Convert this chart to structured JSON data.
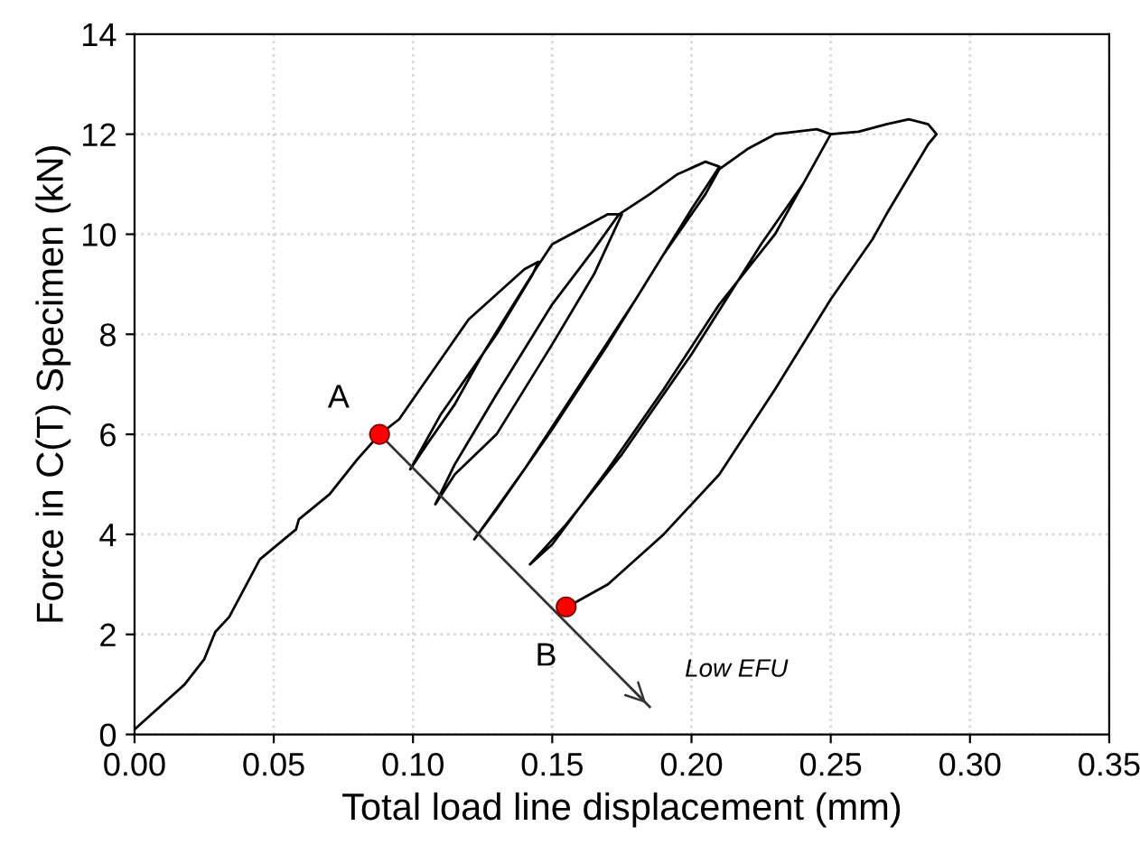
{
  "chart_data": {
    "type": "line",
    "xlabel": "Total load line displacement (mm)",
    "ylabel": "Force in C(T) Specimen (kN)",
    "series": [
      {
        "color": "#000000",
        "x": [
          0,
          0.018,
          0.025,
          0.029,
          0.034,
          0.045,
          0.058,
          0.059,
          0.07,
          0.08,
          0.088,
          0.095,
          0.1,
          0.11,
          0.12,
          0.13,
          0.14,
          0.145,
          0.143,
          0.13,
          0.12,
          0.11,
          0.099,
          0.105,
          0.115,
          0.125,
          0.135,
          0.144,
          0.15,
          0.16,
          0.17,
          0.175,
          0.165,
          0.15,
          0.13,
          0.115,
          0.108,
          0.115,
          0.13,
          0.15,
          0.165,
          0.174,
          0.185,
          0.195,
          0.205,
          0.21,
          0.2,
          0.18,
          0.16,
          0.14,
          0.122,
          0.13,
          0.15,
          0.17,
          0.19,
          0.205,
          0.21,
          0.22,
          0.23,
          0.245,
          0.25,
          0.24,
          0.225,
          0.2,
          0.175,
          0.155,
          0.142,
          0.15,
          0.17,
          0.19,
          0.21,
          0.23,
          0.24,
          0.25,
          0.26,
          0.27,
          0.278,
          0.285,
          0.288,
          0.285,
          0.27,
          0.265,
          0.25,
          0.23,
          0.21,
          0.19,
          0.17,
          0.157
        ],
        "values": [
          0.1,
          1.0,
          1.5,
          2.05,
          2.35,
          3.5,
          4.1,
          4.3,
          4.8,
          5.5,
          6.0,
          6.3,
          6.7,
          7.5,
          8.3,
          8.8,
          9.3,
          9.45,
          9.2,
          8.0,
          7.2,
          6.4,
          5.3,
          5.8,
          6.6,
          7.6,
          8.5,
          9.3,
          9.8,
          10.1,
          10.4,
          10.4,
          9.2,
          7.8,
          6.0,
          5.2,
          4.6,
          5.4,
          6.8,
          8.6,
          9.7,
          10.4,
          10.8,
          11.2,
          11.45,
          11.35,
          10.5,
          8.7,
          7.0,
          5.3,
          3.9,
          4.5,
          6.1,
          7.8,
          9.6,
          10.8,
          11.3,
          11.7,
          12.0,
          12.1,
          12.0,
          11.0,
          9.8,
          7.6,
          5.6,
          4.2,
          3.4,
          3.8,
          5.3,
          6.9,
          8.6,
          10.0,
          11.0,
          12.0,
          12.05,
          12.2,
          12.3,
          12.2,
          12.0,
          11.8,
          10.4,
          9.9,
          8.7,
          6.9,
          5.2,
          4.0,
          3.0,
          2.6
        ]
      },
      {
        "color": "#333333",
        "x": [
          0.088,
          0.185
        ],
        "values": [
          6.0,
          0.55
        ]
      },
      {
        "type": "scatter",
        "color": "#ff0000",
        "x": [
          0.088,
          0.155
        ],
        "values": [
          6.0,
          2.55
        ]
      }
    ],
    "annotations": [
      {
        "text": "A",
        "x": 0.088,
        "y": 6.0
      },
      {
        "text": "B",
        "x": 0.155,
        "y": 2.55
      },
      "Low EFU"
    ],
    "xlim": [
      0,
      0.35
    ],
    "ylim": [
      0,
      14
    ],
    "xticks": [
      {
        "value": 0,
        "label": "0.00"
      },
      {
        "value": 0.05,
        "label": "0.05"
      },
      {
        "value": 0.1,
        "label": "0.10"
      },
      {
        "value": 0.15,
        "label": "0.15"
      },
      {
        "value": 0.2,
        "label": "0.20"
      },
      {
        "value": 0.25,
        "label": "0.25"
      },
      {
        "value": 0.3,
        "label": "0.30"
      },
      {
        "value": 0.35,
        "label": "0.35"
      }
    ],
    "yticks": [
      0,
      2,
      4,
      6,
      8,
      10,
      12,
      14
    ],
    "grid": true,
    "legend": false
  }
}
